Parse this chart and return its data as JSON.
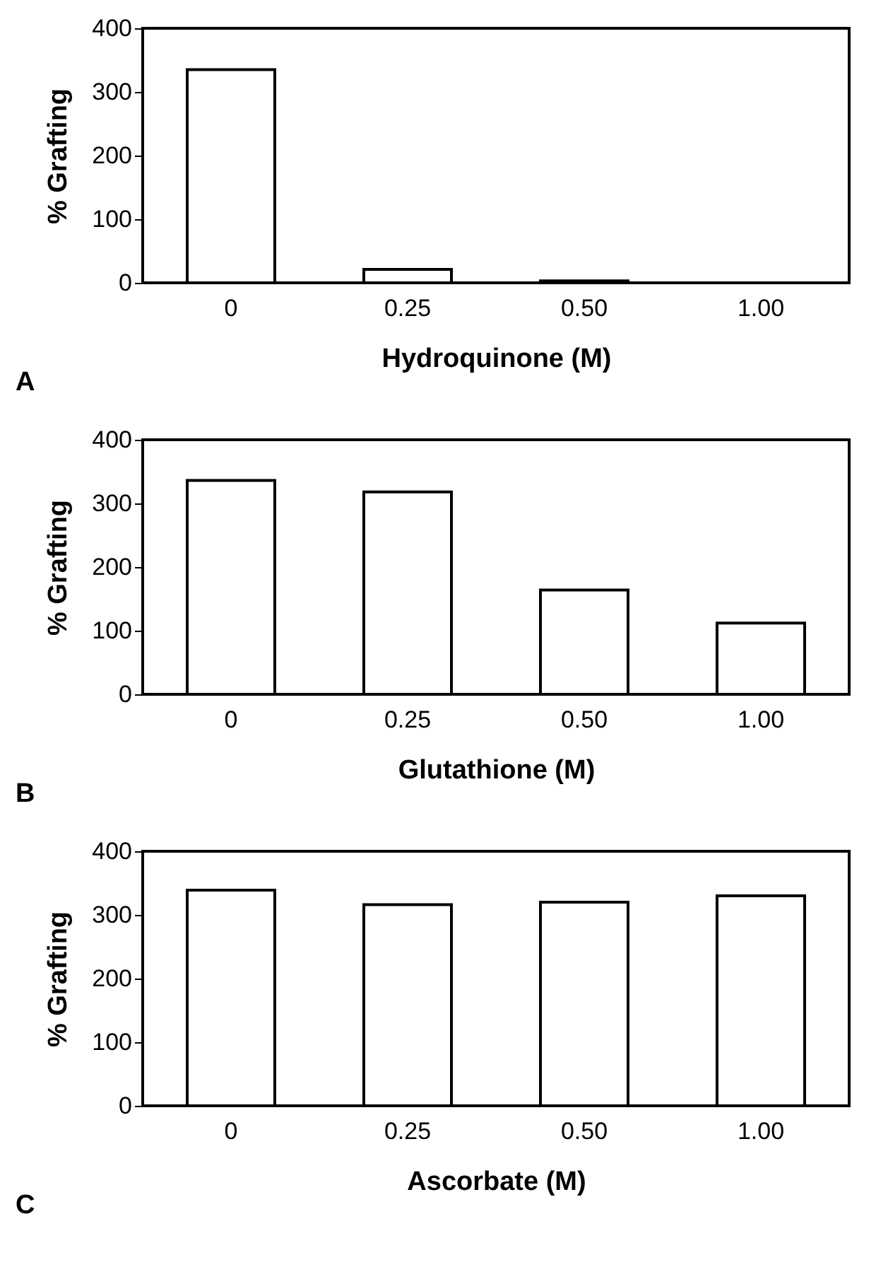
{
  "chart_data": [
    {
      "type": "bar",
      "categories": [
        "0",
        "0.25",
        "0.50",
        "1.00"
      ],
      "values": [
        335,
        21,
        3,
        0
      ],
      "color": "#ffffff",
      "ylabel": "% Grafting",
      "xlabel": "Hydroquinone (M)",
      "ylim": [
        0,
        400
      ],
      "yticks": [
        0,
        100,
        200,
        300,
        400
      ],
      "annotations": [
        "A"
      ]
    },
    {
      "type": "bar",
      "categories": [
        "0",
        "0.25",
        "0.50",
        "1.00"
      ],
      "values": [
        336,
        318,
        164,
        112
      ],
      "color": "#ffffff",
      "ylabel": "% Grafting",
      "xlabel": "Glutathione (M)",
      "ylim": [
        0,
        400
      ],
      "yticks": [
        0,
        100,
        200,
        300,
        400
      ],
      "annotations": [
        "B"
      ]
    },
    {
      "type": "bar",
      "categories": [
        "0",
        "0.25",
        "0.50",
        "1.00"
      ],
      "values": [
        339,
        316,
        320,
        330
      ],
      "color": "#ffffff",
      "ylabel": "% Grafting",
      "xlabel": "Ascorbate (M)",
      "ylim": [
        0,
        400
      ],
      "yticks": [
        0,
        100,
        200,
        300,
        400
      ],
      "annotations": [
        "C"
      ]
    }
  ]
}
